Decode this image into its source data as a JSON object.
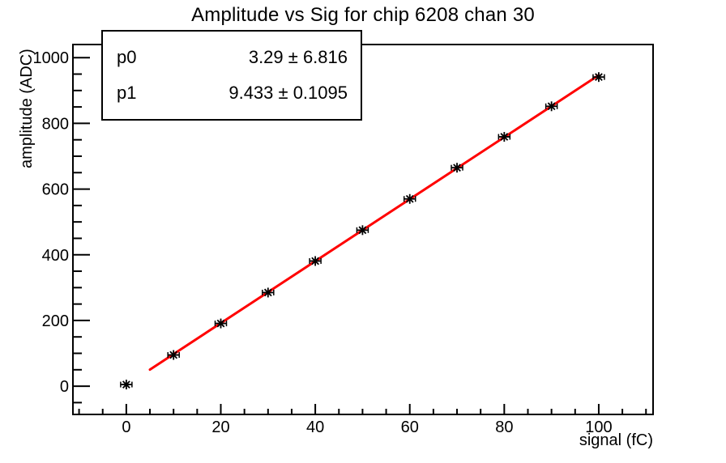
{
  "title": "Amplitude vs Sig for chip 6208 chan 30",
  "stats_box": {
    "rows": [
      {
        "name": "p0",
        "value": "3.29 ± 6.816"
      },
      {
        "name": "p1",
        "value": "9.433 ± 0.1095"
      }
    ]
  },
  "chart_data": {
    "type": "scatter",
    "title": "Amplitude vs Sig for chip 6208 chan 30",
    "xlabel": "signal (fC)",
    "ylabel": "amplitude (ADC)",
    "xlim": [
      -11.3,
      111.5
    ],
    "ylim": [
      -86,
      1040
    ],
    "x_major_ticks": [
      0,
      20,
      40,
      60,
      80,
      100
    ],
    "x_minor_step": 5,
    "y_major_ticks": [
      0,
      200,
      400,
      600,
      800,
      1000
    ],
    "y_minor_step": 50,
    "grid": false,
    "legend": false,
    "axis_color": "#000000",
    "series": [
      {
        "name": "measured amplitude",
        "type": "scatter",
        "marker": "asterisk",
        "color": "#000000",
        "x": [
          0,
          10,
          20,
          30,
          40,
          50,
          60,
          70,
          80,
          90,
          100
        ],
        "y": [
          5,
          95,
          191,
          285,
          381,
          475,
          570,
          665,
          759,
          852,
          941
        ],
        "xerr": 1.2
      },
      {
        "name": "linear fit",
        "type": "fit-line",
        "color": "#ff0000",
        "p0": 3.29,
        "p1": 9.433,
        "x_range": [
          5,
          100
        ]
      }
    ]
  }
}
